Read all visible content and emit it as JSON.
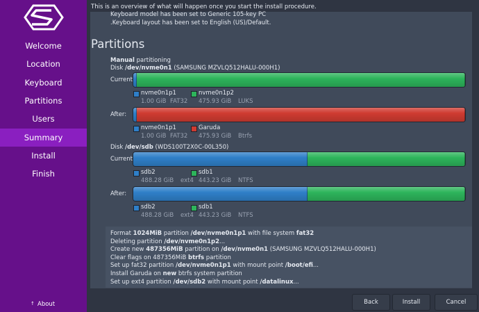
{
  "sidebar": {
    "items": [
      "Welcome",
      "Location",
      "Keyboard",
      "Partitions",
      "Users",
      "Summary",
      "Install",
      "Finish"
    ],
    "selected": 5,
    "about": "About"
  },
  "header": "This is an overview of what will happen once you start the install procedure.",
  "summary_lines": [
    "Keyboard model has been set to Generic 105-key PC",
    ".Keyboard layout has been set to English (US)/Default."
  ],
  "partitions": {
    "title": "Partitions",
    "mode": [
      {
        "text": "Manual",
        "bold": true
      },
      {
        "text": " partitioning"
      }
    ],
    "disks": [
      {
        "label": [
          {
            "text": "Disk "
          },
          {
            "text": "/dev/nvme0n1",
            "bold": true
          },
          {
            "text": " (SAMSUNG MZVLQ512HALU-000H1)"
          }
        ],
        "rows": [
          {
            "name": "Current:",
            "parts": [
              {
                "name": "nvme0n1p1",
                "size": "1.00 GiB",
                "fs": "FAT32",
                "color": "#2f7fc8"
              },
              {
                "name": "nvme0n1p2",
                "size": "475.93 GiB",
                "fs": "LUKS",
                "color": "#2db45b"
              }
            ]
          },
          {
            "name": "After:",
            "parts": [
              {
                "name": "nvme0n1p1",
                "size": "1.00 GiB",
                "fs": "FAT32",
                "color": "#2f7fc8"
              },
              {
                "name": "Garuda",
                "size": "475.93 GiB",
                "fs": "Btrfs",
                "color": "#cf3b31"
              }
            ]
          }
        ]
      },
      {
        "label": [
          {
            "text": "Disk "
          },
          {
            "text": "/dev/sdb",
            "bold": true
          },
          {
            "text": " (WDS100T2X0C-00L350)"
          }
        ],
        "rows": [
          {
            "name": "Current:",
            "parts": [
              {
                "name": "sdb2",
                "size": "488.28 GiB",
                "fs": "ext4",
                "color": "#2f7fc8"
              },
              {
                "name": "sdb1",
                "size": "443.23 GiB",
                "fs": "NTFS",
                "color": "#2db45b"
              }
            ]
          },
          {
            "name": "After:",
            "parts": [
              {
                "name": "sdb2",
                "size": "488.28 GiB",
                "fs": "ext4",
                "color": "#2f7fc8"
              },
              {
                "name": "sdb1",
                "size": "443.23 GiB",
                "fs": "NTFS",
                "color": "#2db45b"
              }
            ]
          }
        ]
      }
    ]
  },
  "jobs": [
    [
      {
        "text": "Format "
      },
      {
        "text": "1024MiB",
        "bold": true
      },
      {
        "text": " partition "
      },
      {
        "text": "/dev/nvme0n1p1",
        "bold": true
      },
      {
        "text": " with file system "
      },
      {
        "text": "fat32",
        "bold": true
      }
    ],
    [
      {
        "text": "Deleting partition "
      },
      {
        "text": "/dev/nvme0n1p2",
        "bold": true
      },
      {
        "text": "..."
      }
    ],
    [
      {
        "text": "Create new "
      },
      {
        "text": "487356MiB",
        "bold": true
      },
      {
        "text": " partition on "
      },
      {
        "text": "/dev/nvme0n1",
        "bold": true
      },
      {
        "text": " (SAMSUNG MZVLQ512HALU-000H1)"
      }
    ],
    [
      {
        "text": "Clear flags on 487356MiB "
      },
      {
        "text": "btrfs",
        "bold": true
      },
      {
        "text": " partition"
      }
    ],
    [
      {
        "text": "Set up fat32 partition "
      },
      {
        "text": "/dev/nvme0n1p1",
        "bold": true
      },
      {
        "text": " with mount point "
      },
      {
        "text": "/boot/efi",
        "bold": true
      },
      {
        "text": "..."
      }
    ],
    [
      {
        "text": "Install Garuda on "
      },
      {
        "text": "new",
        "bold": true
      },
      {
        "text": " btrfs system partition"
      }
    ],
    [
      {
        "text": "Set up ext4 partition "
      },
      {
        "text": "/dev/sdb2",
        "bold": true
      },
      {
        "text": " with mount point "
      },
      {
        "text": "/datalinux",
        "bold": true
      },
      {
        "text": "..."
      }
    ]
  ],
  "buttons": [
    "Back",
    "Install",
    "Cancel"
  ]
}
